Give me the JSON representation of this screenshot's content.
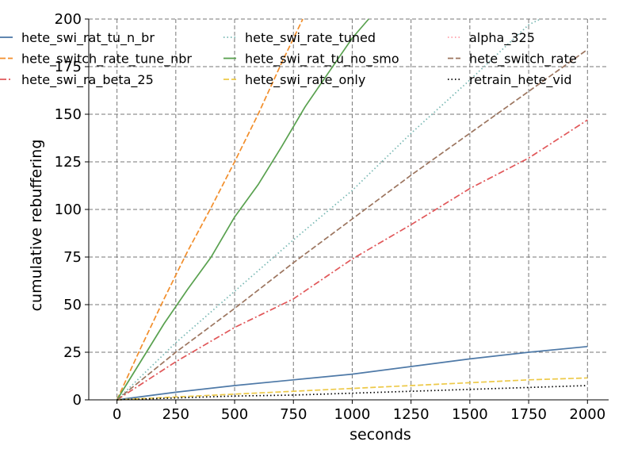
{
  "chart_data": {
    "type": "line",
    "xlabel": "seconds",
    "ylabel": "cumulative rebuffering",
    "xlim": [
      -120,
      2090
    ],
    "ylim": [
      0,
      200
    ],
    "xticks": [
      0,
      250,
      500,
      750,
      1000,
      1250,
      1500,
      1750,
      2000
    ],
    "yticks": [
      0,
      25,
      50,
      75,
      100,
      125,
      150,
      175,
      200
    ],
    "grid": true,
    "legend_position": "top",
    "series": [
      {
        "name": "hete_swi_rat_tu_n_br",
        "color": "#4e79a7",
        "style": "solid",
        "x": [
          0,
          250,
          500,
          750,
          1000,
          1250,
          1500,
          1750,
          2000
        ],
        "values": [
          0,
          4,
          7.5,
          10.5,
          13.5,
          17.5,
          21.5,
          25,
          28
        ]
      },
      {
        "name": "hete_switch_rate_tune_nbr",
        "color": "#f28e2b",
        "style": "dashed",
        "x": [
          0,
          100,
          200,
          300,
          400,
          500,
          600,
          700,
          790
        ],
        "values": [
          0,
          27,
          53,
          78,
          101,
          125,
          150,
          177,
          200
        ]
      },
      {
        "name": "hete_swi_ra_beta_25",
        "color": "#e15759",
        "style": "dashdot",
        "x": [
          0,
          250,
          500,
          750,
          1000,
          1250,
          1500,
          1750,
          2000
        ],
        "values": [
          0,
          20,
          38,
          53,
          74,
          92,
          111,
          127,
          147
        ]
      },
      {
        "name": "hete_swi_rate_tuned",
        "color": "#76b7b2",
        "style": "dotted",
        "x": [
          0,
          250,
          500,
          750,
          1000,
          1250,
          1500,
          1750,
          1800
        ],
        "values": [
          0,
          30,
          57,
          84,
          110,
          140,
          168,
          197,
          200
        ]
      },
      {
        "name": "hete_swi_rat_tu_no_smo",
        "color": "#59a14f",
        "style": "solid",
        "x": [
          0,
          100,
          200,
          300,
          400,
          500,
          600,
          700,
          800,
          900,
          1000,
          1070
        ],
        "values": [
          0,
          20,
          40,
          58,
          75,
          96,
          113,
          133,
          154,
          172,
          190,
          200
        ]
      },
      {
        "name": "hete_swi_rate_only",
        "color": "#edc948",
        "style": "dashed",
        "x": [
          0,
          250,
          500,
          750,
          1000,
          1250,
          1500,
          1750,
          2000
        ],
        "values": [
          0,
          1.5,
          3,
          4.5,
          6,
          7.5,
          9,
          10.5,
          11.5
        ]
      },
      {
        "name": "alpha_325",
        "color": "#ff9da7",
        "style": "dotted",
        "x": [],
        "values": []
      },
      {
        "name": "hete_switch_rate",
        "color": "#9c755f",
        "style": "dashed",
        "x": [
          0,
          250,
          500,
          750,
          1000,
          1250,
          1500,
          1750,
          2000
        ],
        "values": [
          0,
          25,
          48,
          72,
          95,
          118,
          140,
          162,
          184
        ]
      },
      {
        "name": "retrain_hete_vid",
        "color": "#000000",
        "style": "dotted",
        "x": [
          0,
          250,
          500,
          750,
          1000,
          1250,
          1500,
          1750,
          2000
        ],
        "values": [
          0,
          1,
          2,
          2.5,
          3.5,
          4.5,
          5.5,
          6.5,
          7.5
        ]
      }
    ]
  }
}
